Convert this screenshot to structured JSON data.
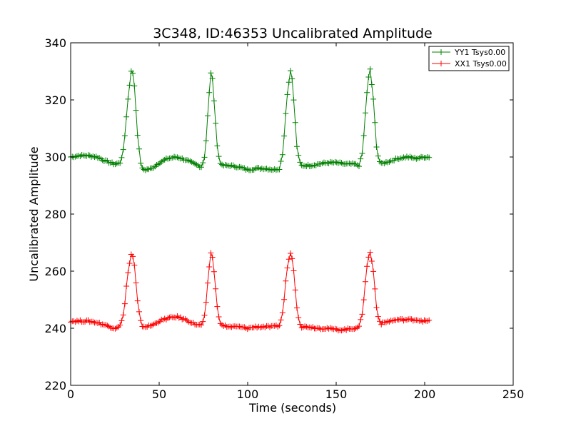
{
  "chart_data": {
    "type": "line",
    "title": "3C348, ID:46353 Uncalibrated Amplitude",
    "xlabel": "Time (seconds)",
    "ylabel": "Uncalibrated Amplitude",
    "xlim": [
      0,
      250
    ],
    "ylim": [
      220,
      340
    ],
    "xticks": [
      0,
      50,
      100,
      150,
      200,
      250
    ],
    "yticks": [
      220,
      240,
      260,
      280,
      300,
      320,
      340
    ],
    "xtick_labels": [
      "0",
      "50",
      "100",
      "150",
      "200",
      "250"
    ],
    "ytick_labels": [
      "220",
      "240",
      "260",
      "280",
      "300",
      "320",
      "340"
    ],
    "grid": false,
    "legend_position": "top-right",
    "marker": "+",
    "series": [
      {
        "name": "YY1 Tsys0.00",
        "color": "#008000",
        "points": [
          [
            0,
            300
          ],
          [
            5,
            300.5
          ],
          [
            10,
            300.5
          ],
          [
            15,
            300
          ],
          [
            20,
            298.5
          ],
          [
            25,
            297.5
          ],
          [
            28,
            298
          ],
          [
            30,
            303
          ],
          [
            32,
            318
          ],
          [
            34.5,
            332
          ],
          [
            36,
            325
          ],
          [
            38,
            306
          ],
          [
            40,
            296
          ],
          [
            42,
            295.5
          ],
          [
            46,
            296
          ],
          [
            50,
            298
          ],
          [
            55,
            299.5
          ],
          [
            60,
            300
          ],
          [
            65,
            299
          ],
          [
            70,
            297.5
          ],
          [
            74,
            296.5
          ],
          [
            76,
            301
          ],
          [
            78,
            320
          ],
          [
            79.5,
            332
          ],
          [
            81,
            320
          ],
          [
            83,
            302
          ],
          [
            85,
            297
          ],
          [
            90,
            297
          ],
          [
            95,
            296.5
          ],
          [
            100,
            295.5
          ],
          [
            105,
            296
          ],
          [
            110,
            296
          ],
          [
            115,
            295.5
          ],
          [
            118,
            296
          ],
          [
            120,
            302
          ],
          [
            122,
            320
          ],
          [
            124.5,
            332
          ],
          [
            126,
            320
          ],
          [
            128,
            302
          ],
          [
            130,
            297
          ],
          [
            135,
            297
          ],
          [
            140,
            297.5
          ],
          [
            145,
            298
          ],
          [
            150,
            298
          ],
          [
            155,
            297.5
          ],
          [
            160,
            297.5
          ],
          [
            163,
            297
          ],
          [
            165,
            302
          ],
          [
            167,
            320
          ],
          [
            169,
            332
          ],
          [
            171,
            320
          ],
          [
            173,
            302
          ],
          [
            175,
            297.5
          ],
          [
            180,
            298.5
          ],
          [
            185,
            299.5
          ],
          [
            190,
            300
          ],
          [
            195,
            299.5
          ],
          [
            200,
            300
          ],
          [
            203,
            300
          ]
        ]
      },
      {
        "name": "XX1 Tsys0.00",
        "color": "#ff0000",
        "points": [
          [
            0,
            242.5
          ],
          [
            5,
            242.5
          ],
          [
            10,
            242.5
          ],
          [
            15,
            242
          ],
          [
            20,
            241
          ],
          [
            25,
            240
          ],
          [
            28,
            241
          ],
          [
            30,
            245
          ],
          [
            32,
            258
          ],
          [
            34.5,
            267
          ],
          [
            36,
            262
          ],
          [
            38,
            248
          ],
          [
            40,
            241
          ],
          [
            42,
            240.5
          ],
          [
            46,
            241
          ],
          [
            50,
            242.5
          ],
          [
            55,
            243.5
          ],
          [
            60,
            244
          ],
          [
            65,
            243
          ],
          [
            70,
            241.5
          ],
          [
            74,
            241
          ],
          [
            76,
            245
          ],
          [
            78,
            260
          ],
          [
            79.5,
            268
          ],
          [
            81,
            260
          ],
          [
            83,
            246
          ],
          [
            85,
            241
          ],
          [
            90,
            240.5
          ],
          [
            95,
            240.5
          ],
          [
            100,
            240
          ],
          [
            105,
            240.5
          ],
          [
            110,
            240.5
          ],
          [
            115,
            240.5
          ],
          [
            118,
            241
          ],
          [
            120,
            246
          ],
          [
            122,
            260
          ],
          [
            124.5,
            267.5
          ],
          [
            126,
            260
          ],
          [
            128,
            246
          ],
          [
            130,
            240.5
          ],
          [
            135,
            240.5
          ],
          [
            140,
            240
          ],
          [
            145,
            240
          ],
          [
            150,
            239.5
          ],
          [
            155,
            239.5
          ],
          [
            160,
            240
          ],
          [
            163,
            240.5
          ],
          [
            165,
            246
          ],
          [
            167,
            260
          ],
          [
            169,
            267.5
          ],
          [
            171,
            260
          ],
          [
            173,
            246
          ],
          [
            175,
            241.5
          ],
          [
            180,
            242.5
          ],
          [
            185,
            243
          ],
          [
            190,
            243
          ],
          [
            195,
            243
          ],
          [
            200,
            242.5
          ],
          [
            203,
            242.5
          ]
        ]
      }
    ]
  }
}
